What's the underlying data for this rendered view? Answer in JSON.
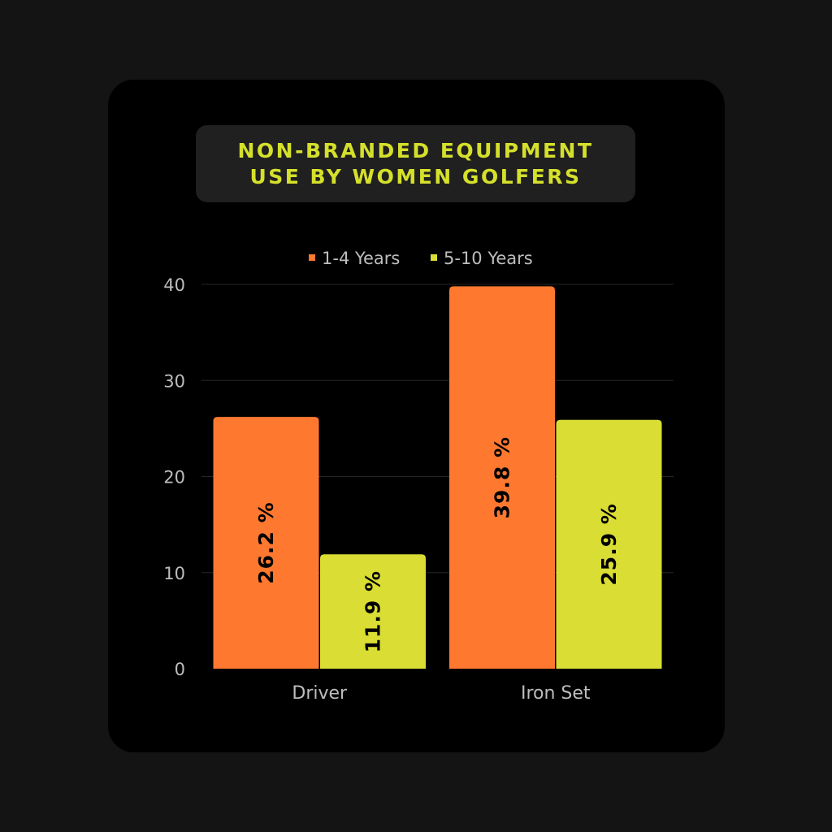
{
  "colors": {
    "background": "#141414",
    "card": "#000000",
    "title_box": "#202020",
    "title_text": "#d5e02b",
    "axis_text": "#bdbdbd",
    "grid": "#262626",
    "bar_label": "#000000"
  },
  "chart_data": {
    "type": "bar",
    "title_lines": [
      "NON-BRANDED EQUIPMENT",
      "USE BY WOMEN GOLFERS"
    ],
    "categories": [
      "Driver",
      "Iron Set"
    ],
    "series": [
      {
        "name": "1-4 Years",
        "color": "#fe7830",
        "values": [
          26.2,
          39.8
        ],
        "labels": [
          "26.2 %",
          "39.8 %"
        ]
      },
      {
        "name": "5-10 Years",
        "color": "#dadd33",
        "values": [
          11.9,
          25.9
        ],
        "labels": [
          "11.9 %",
          "25.9 %"
        ]
      }
    ],
    "xlabel": "",
    "ylabel": "",
    "ylim": [
      0,
      40
    ],
    "yticks": [
      "0",
      "10",
      "20",
      "30",
      "40"
    ],
    "grid": true,
    "legend_position": "top-center"
  }
}
